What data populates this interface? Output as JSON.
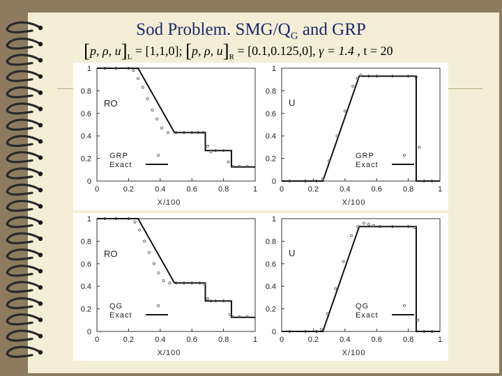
{
  "slide": {
    "title_main": "Sod Problem. SMG/Q",
    "title_sub": "G",
    "title_tail": " and GRP",
    "formula": {
      "vars": "p, ρ, u",
      "left_sub": "L",
      "left_val": " = [1,1,0]; ",
      "right_sub": "R",
      "right_val": " = [0.1,0.125,0], ",
      "gamma": "γ = 1.4",
      "t": " , t = 20"
    },
    "colors": {
      "background": "#8c7b5f",
      "paper": "#f4eed6",
      "title": "#1c2a6b"
    }
  },
  "chart_data": [
    {
      "type": "line",
      "panel": "top-left",
      "variable_label": "RO",
      "xlabel": "X/100",
      "xlim": [
        0,
        1
      ],
      "ylim": [
        0,
        1
      ],
      "xticks": [
        "0",
        "0.2",
        "0.4",
        "0.6",
        "0.8",
        "1"
      ],
      "yticks": [
        "0",
        "0.2",
        "0.4",
        "0.6",
        "0.8",
        "1"
      ],
      "legend": "bottom-left",
      "series": [
        {
          "name": "GRP",
          "style": "markers",
          "x": [
            0.05,
            0.12,
            0.2,
            0.23,
            0.26,
            0.29,
            0.32,
            0.35,
            0.38,
            0.41,
            0.45,
            0.5,
            0.55,
            0.6,
            0.64,
            0.67,
            0.7,
            0.72,
            0.75,
            0.8,
            0.83,
            0.86,
            0.9,
            0.95
          ],
          "y": [
            1,
            1,
            1,
            0.98,
            0.91,
            0.83,
            0.73,
            0.63,
            0.55,
            0.47,
            0.43,
            0.43,
            0.43,
            0.43,
            0.43,
            0.43,
            0.31,
            0.26,
            0.27,
            0.27,
            0.17,
            0.13,
            0.13,
            0.13
          ]
        },
        {
          "name": "Exact",
          "style": "line",
          "x": [
            0,
            0.26,
            0.49,
            0.685,
            0.685,
            0.85,
            0.85,
            1
          ],
          "y": [
            1,
            1,
            0.43,
            0.43,
            0.27,
            0.27,
            0.125,
            0.125
          ]
        }
      ]
    },
    {
      "type": "line",
      "panel": "top-right",
      "variable_label": "U",
      "xlabel": "X/100",
      "xlim": [
        0,
        1
      ],
      "ylim": [
        0,
        1
      ],
      "xticks": [
        "0",
        "0.2",
        "0.4",
        "0.6",
        "0.8",
        "1"
      ],
      "yticks": [
        "0",
        "0.2",
        "0.4",
        "0.6",
        "0.8",
        "1"
      ],
      "legend": "bottom-right",
      "series": [
        {
          "name": "GRP",
          "style": "markers",
          "x": [
            0.05,
            0.15,
            0.22,
            0.26,
            0.3,
            0.35,
            0.4,
            0.45,
            0.48,
            0.5,
            0.55,
            0.6,
            0.7,
            0.8,
            0.85,
            0.87,
            0.9,
            0.95
          ],
          "y": [
            0,
            0,
            0,
            0.02,
            0.18,
            0.4,
            0.62,
            0.84,
            0.91,
            0.94,
            0.93,
            0.93,
            0.93,
            0.93,
            0.92,
            0.3,
            0,
            0
          ]
        },
        {
          "name": "Exact",
          "style": "line",
          "x": [
            0,
            0.26,
            0.49,
            0.85,
            0.85,
            1
          ],
          "y": [
            0,
            0,
            0.93,
            0.93,
            0,
            0
          ]
        }
      ]
    },
    {
      "type": "line",
      "panel": "bottom-left",
      "variable_label": "RO",
      "xlabel": "X/100",
      "xlim": [
        0,
        1
      ],
      "ylim": [
        0,
        1
      ],
      "xticks": [
        "0",
        "0.2",
        "0.4",
        "0.6",
        "0.8",
        "1"
      ],
      "yticks": [
        "0",
        "0.2",
        "0.4",
        "0.6",
        "0.8",
        "1"
      ],
      "legend": "bottom-left",
      "series": [
        {
          "name": "QG",
          "style": "markers",
          "x": [
            0.05,
            0.12,
            0.2,
            0.24,
            0.27,
            0.3,
            0.33,
            0.36,
            0.39,
            0.42,
            0.46,
            0.5,
            0.55,
            0.6,
            0.65,
            0.68,
            0.7,
            0.72,
            0.75,
            0.8,
            0.84,
            0.86,
            0.9,
            0.95
          ],
          "y": [
            1,
            1,
            1,
            0.97,
            0.9,
            0.8,
            0.7,
            0.6,
            0.52,
            0.45,
            0.43,
            0.43,
            0.43,
            0.43,
            0.43,
            0.42,
            0.29,
            0.27,
            0.27,
            0.27,
            0.15,
            0.13,
            0.13,
            0.13
          ]
        },
        {
          "name": "Exact",
          "style": "line",
          "x": [
            0,
            0.26,
            0.49,
            0.685,
            0.685,
            0.85,
            0.85,
            1
          ],
          "y": [
            1,
            1,
            0.43,
            0.43,
            0.27,
            0.27,
            0.125,
            0.125
          ]
        }
      ]
    },
    {
      "type": "line",
      "panel": "bottom-right",
      "variable_label": "U",
      "xlabel": "X/100",
      "xlim": [
        0,
        1
      ],
      "ylim": [
        0,
        1
      ],
      "xticks": [
        "0",
        "0.2",
        "0.4",
        "0.6",
        "0.8",
        "1"
      ],
      "yticks": [
        "0",
        "0.2",
        "0.4",
        "0.6",
        "0.8",
        "1"
      ],
      "legend": "bottom-right",
      "series": [
        {
          "name": "QG",
          "style": "markers",
          "x": [
            0.05,
            0.15,
            0.22,
            0.25,
            0.29,
            0.34,
            0.39,
            0.44,
            0.48,
            0.52,
            0.55,
            0.58,
            0.62,
            0.7,
            0.8,
            0.84,
            0.86,
            0.9,
            0.95
          ],
          "y": [
            0,
            0,
            0,
            0.02,
            0.16,
            0.38,
            0.62,
            0.85,
            0.93,
            0.96,
            0.95,
            0.94,
            0.93,
            0.93,
            0.93,
            0.92,
            0.1,
            0,
            0
          ]
        },
        {
          "name": "Exact",
          "style": "line",
          "x": [
            0,
            0.26,
            0.49,
            0.85,
            0.85,
            1
          ],
          "y": [
            0,
            0,
            0.93,
            0.93,
            0,
            0
          ]
        }
      ]
    }
  ]
}
